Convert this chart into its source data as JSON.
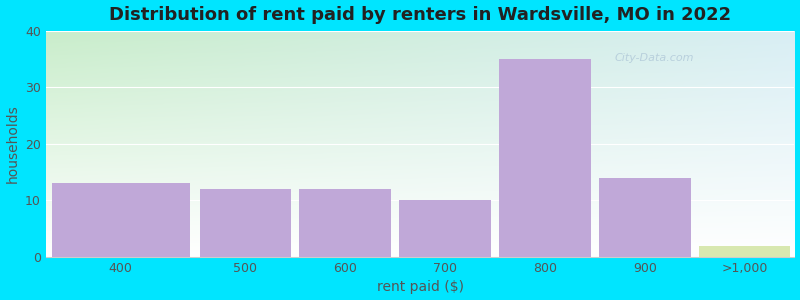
{
  "title": "Distribution of rent paid by renters in Wardsville, MO in 2022",
  "xlabel": "rent paid ($)",
  "ylabel": "households",
  "bar_labels": [
    "400",
    "500",
    "600",
    "700",
    "800",
    "900",
    ">1,000"
  ],
  "values": [
    13,
    12,
    12,
    10,
    35,
    14,
    2
  ],
  "bar_color": "#c0a8d8",
  "last_bar_color": "#d8e8b0",
  "ylim": [
    0,
    40
  ],
  "yticks": [
    0,
    10,
    20,
    30,
    40
  ],
  "bg_color_topleft": "#c8edc8",
  "bg_color_topright": "#d8eef4",
  "bg_color_bottomleft": "#e8f8e8",
  "bg_color_bottomright": "#f0f8fc",
  "title_fontsize": 13,
  "axis_label_fontsize": 10,
  "tick_fontsize": 9,
  "outer_background": "#00e5ff",
  "watermark_text": "City-Data.com",
  "watermark_color": "#b0c8d8"
}
